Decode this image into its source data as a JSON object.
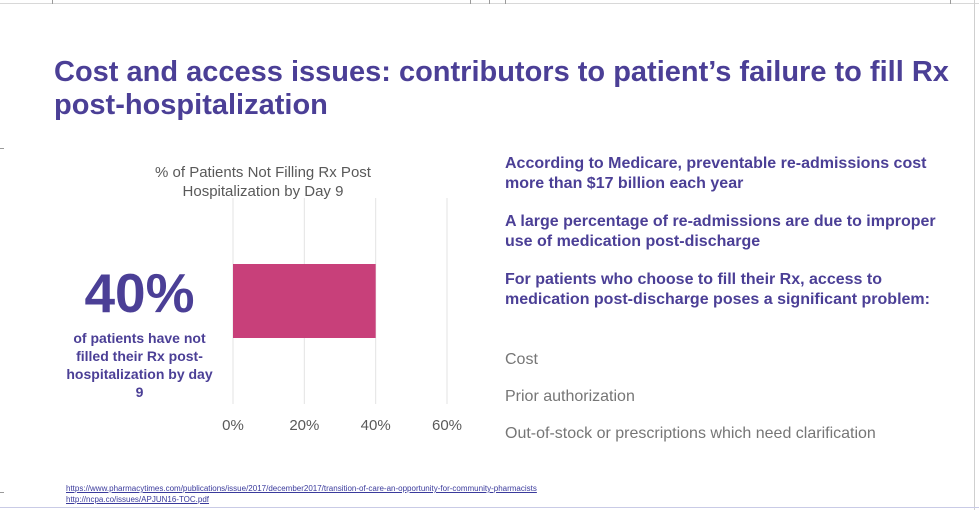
{
  "slide": {
    "title": "Cost and access issues: contributors to patient’s failure to fill Rx post-hospitalization"
  },
  "stat": {
    "value": "40%",
    "caption": "of patients have not filled their Rx post-hospitalization by day 9"
  },
  "bullets": {
    "b1": "According to Medicare, preventable re-admissions cost more than $17 billion each year",
    "b2": "A large percentage of re-admissions are due to improper use of medication post-discharge",
    "b3": "For patients who choose to fill their Rx, access to medication post-discharge poses a significant problem:",
    "s1": "Cost",
    "s2": "Prior authorization",
    "s3": "Out-of-stock or prescriptions which need clarification"
  },
  "references": {
    "r1": "https://www.pharmacytimes.com/publications/issue/2017/december2017/transition-of-care-an-opportunity-for-community-pharmacists",
    "r2": "http://ncpa.co/issues/APJUN16-TOC.pdf"
  },
  "colors": {
    "accent": "#4b3f96",
    "bar": "#c8407a",
    "muted_text": "#767676"
  },
  "chart_data": {
    "type": "bar",
    "orientation": "horizontal",
    "title": "% of Patients Not Filling Rx Post Hospitalization by Day 9",
    "categories": [
      ""
    ],
    "values": [
      40
    ],
    "xlim": [
      0,
      60
    ],
    "x_ticks": [
      "0%",
      "20%",
      "40%",
      "60%"
    ],
    "x_tick_values": [
      0,
      20,
      40,
      60
    ],
    "grid": true,
    "bar_color": "#c8407a"
  }
}
